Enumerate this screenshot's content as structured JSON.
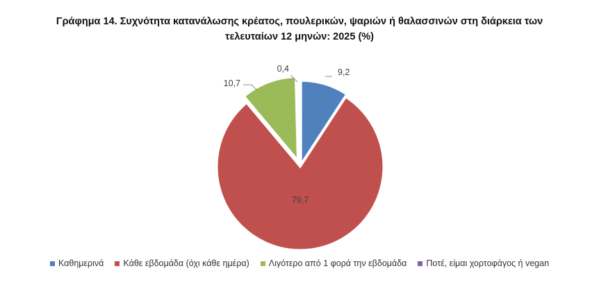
{
  "title": {
    "line1": "Γράφημα 14. Συχνότητα κατανάλωσης κρέατος, πουλερικών, ψαριών ή θαλασσινών στη διάρκεια των",
    "line2": "τελευταίων 12 μηνών: 2025 (%)"
  },
  "chart_data": {
    "type": "pie",
    "title": "Γράφημα 14. Συχνότητα κατανάλωσης κρέατος, πουλερικών, ψαριών ή θαλασσινών στη διάρκεια των τελευταίων 12 μηνών: 2025 (%)",
    "legend_position": "bottom",
    "slices": [
      {
        "label": "Καθημερινά",
        "value": 9.2,
        "value_label": "9,2",
        "color": "#4F81BD"
      },
      {
        "label": "Κάθε εβδομάδα (όχι κάθε ημέρα)",
        "value": 79.7,
        "value_label": "79,7",
        "color": "#C0504D"
      },
      {
        "label": "Λιγότερο από 1 φορά την εβδομάδα",
        "value": 10.7,
        "value_label": "10,7",
        "color": "#9BBB59"
      },
      {
        "label": "Ποτέ, είμαι χορτοφάγος ή vegan",
        "value": 0.4,
        "value_label": "0,4",
        "color": "#8064A2"
      }
    ]
  }
}
